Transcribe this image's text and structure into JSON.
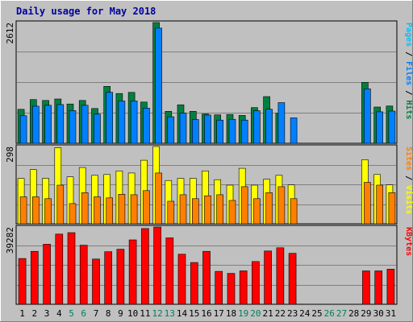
{
  "chart_data": {
    "type": "bar",
    "title": "Daily usage for May 2018",
    "categories": [
      "1",
      "2",
      "3",
      "4",
      "5",
      "6",
      "7",
      "8",
      "9",
      "10",
      "11",
      "12",
      "13",
      "14",
      "15",
      "16",
      "17",
      "18",
      "19",
      "20",
      "21",
      "22",
      "23",
      "24",
      "25",
      "26",
      "27",
      "28",
      "29",
      "30",
      "31"
    ],
    "weekend_days": [
      "5",
      "6",
      "12",
      "13",
      "19",
      "20",
      "26",
      "27"
    ],
    "panels": [
      {
        "id": "hits",
        "max_label": "2612",
        "ymax": 2612,
        "series": [
          {
            "name": "Hits",
            "color": "#008040",
            "values": [
              734,
              946,
              927,
              957,
              850,
              927,
              753,
              1231,
              1076,
              1101,
              891,
              2612,
              691,
              832,
              691,
              633,
              614,
              623,
              602,
              772,
              1010,
              650,
              0,
              0,
              0,
              0,
              0,
              0,
              1319,
              783,
              807
            ]
          },
          {
            "name": "Files",
            "color": "#0080ff",
            "values": [
              595,
              803,
              822,
              838,
              707,
              822,
              631,
              1104,
              916,
              916,
              761,
              2491,
              573,
              654,
              514,
              612,
              502,
              519,
              502,
              704,
              737,
              879,
              550,
              0,
              0,
              0,
              0,
              0,
              1177,
              680,
              696
            ]
          },
          {
            "name": "Pages",
            "color": "#00c0ff",
            "values": [
              0,
              0,
              0,
              0,
              0,
              0,
              0,
              0,
              0,
              0,
              0,
              0,
              0,
              0,
              0,
              0,
              0,
              0,
              0,
              0,
              0,
              0,
              0,
              0,
              0,
              0,
              0,
              0,
              0,
              0,
              0
            ]
          }
        ],
        "side_label": [
          {
            "text": "Pages",
            "color": "#00c0ff"
          },
          {
            "text": " / ",
            "color": "#000000"
          },
          {
            "text": "Files",
            "color": "#0080ff"
          },
          {
            "text": " / ",
            "color": "#000000"
          },
          {
            "text": "Hits",
            "color": "#008040"
          }
        ]
      },
      {
        "id": "visits",
        "max_label": "298",
        "ymax": 298,
        "series": [
          {
            "name": "Visits",
            "color": "#ffff00",
            "values": [
              175,
              209,
              175,
              293,
              181,
              217,
              187,
              190,
              204,
              196,
              245,
              298,
              167,
              175,
              175,
              204,
              170,
              149,
              214,
              149,
              172,
              187,
              150,
              0,
              0,
              0,
              0,
              0,
              247,
              190,
              150
            ]
          },
          {
            "name": "Sites",
            "color": "#ff8000",
            "values": [
              104,
              104,
              97,
              149,
              78,
              120,
              104,
              100,
              114,
              112,
              128,
              196,
              87,
              112,
              97,
              108,
              112,
              90,
              143,
              97,
              120,
              143,
              97,
              0,
              0,
              0,
              0,
              0,
              160,
              149,
              120
            ]
          }
        ],
        "side_label": [
          {
            "text": "Sites",
            "color": "#ff8000"
          },
          {
            "text": " / ",
            "color": "#000000"
          },
          {
            "text": "Visits",
            "color": "#ffff00"
          }
        ]
      },
      {
        "id": "kbytes",
        "max_label": "39282",
        "ymax": 39282,
        "series": [
          {
            "name": "KBytes",
            "color": "#ff0000",
            "values": [
              23296,
              26920,
              30510,
              35700,
              36400,
              30020,
              23000,
              26730,
              28000,
              32730,
              38500,
              39282,
              33760,
              25460,
              21250,
              26920,
              16730,
              15730,
              17000,
              21730,
              27070,
              28730,
              25920,
              0,
              0,
              0,
              0,
              0,
              17000,
              17000,
              17850
            ]
          }
        ],
        "side_label": [
          {
            "text": "KBytes",
            "color": "#ff0000"
          }
        ]
      }
    ],
    "grid": true,
    "legend": "right"
  }
}
